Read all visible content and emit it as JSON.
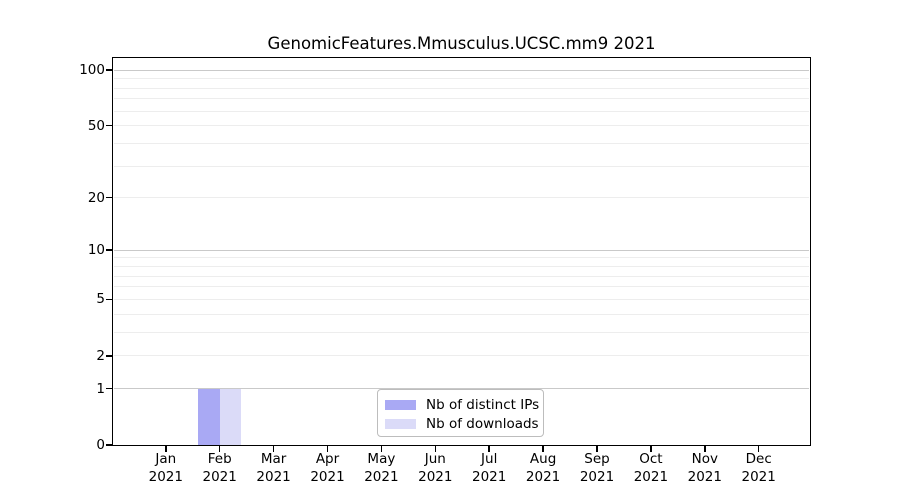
{
  "page": {
    "background": "#ffffff"
  },
  "chart_data": {
    "type": "bar",
    "title": "GenomicFeatures.Mmusculus.UCSC.mm9 2021",
    "categories": [
      "Jan",
      "Feb",
      "Mar",
      "Apr",
      "May",
      "Jun",
      "Jul",
      "Aug",
      "Sep",
      "Oct",
      "Nov",
      "Dec"
    ],
    "year_label": "2021",
    "series": [
      {
        "name": "Nb of distinct IPs",
        "color": "#a9a9f4",
        "values": [
          0,
          1,
          0,
          0,
          0,
          0,
          0,
          0,
          0,
          0,
          0,
          0
        ]
      },
      {
        "name": "Nb of downloads",
        "color": "#dbdbf8",
        "values": [
          0,
          1,
          0,
          0,
          0,
          0,
          0,
          0,
          0,
          0,
          0,
          0
        ]
      }
    ],
    "xlabel": "",
    "ylabel": "",
    "y_ticks": [
      0,
      1,
      2,
      5,
      10,
      20,
      50,
      100
    ],
    "y_scale": "log2(1+value)",
    "ylim": [
      0,
      115
    ],
    "grid": true,
    "gridlines": {
      "major": [
        1,
        10,
        100
      ],
      "minor": [
        2,
        3,
        4,
        5,
        6,
        7,
        8,
        9,
        20,
        30,
        40,
        50,
        60,
        70,
        80,
        90
      ]
    },
    "grid_major_color": "#c9c9c9",
    "grid_minor_color": "#ededed",
    "legend_position": "bottom-center"
  }
}
